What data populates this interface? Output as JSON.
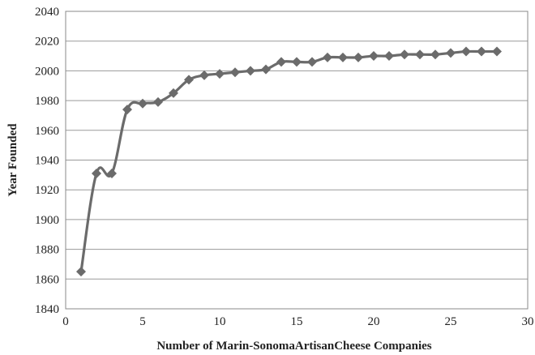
{
  "chart_data": {
    "type": "line",
    "title": "",
    "xlabel": "Number of Marin-SonomaArtisanCheese Companies",
    "ylabel": "Year Founded",
    "xlim": [
      0,
      30
    ],
    "ylim": [
      1840,
      2040
    ],
    "xticks": [
      0,
      5,
      10,
      15,
      20,
      25,
      30
    ],
    "yticks": [
      1840,
      1860,
      1880,
      1900,
      1920,
      1940,
      1960,
      1980,
      2000,
      2020,
      2040
    ],
    "grid": "horizontal",
    "legend": "none",
    "series": [
      {
        "marker": "diamond",
        "x": [
          1,
          2,
          3,
          4,
          5,
          6,
          7,
          8,
          9,
          10,
          11,
          12,
          13,
          14,
          15,
          16,
          17,
          18,
          19,
          20,
          21,
          22,
          23,
          24,
          25,
          26,
          27,
          28
        ],
        "y": [
          1865,
          1931,
          1931,
          1974,
          1978,
          1979,
          1985,
          1994,
          1997,
          1998,
          1999,
          2000,
          2001,
          2006,
          2006,
          2006,
          2009,
          2009,
          2009,
          2010,
          2010,
          2011,
          2011,
          2011,
          2012,
          2013,
          2013,
          2013
        ]
      }
    ],
    "colors": {
      "line": "#6b6b6b",
      "marker": "#6b6b6b",
      "grid": "#9a9a9a",
      "axis": "#8a8a8a"
    }
  }
}
